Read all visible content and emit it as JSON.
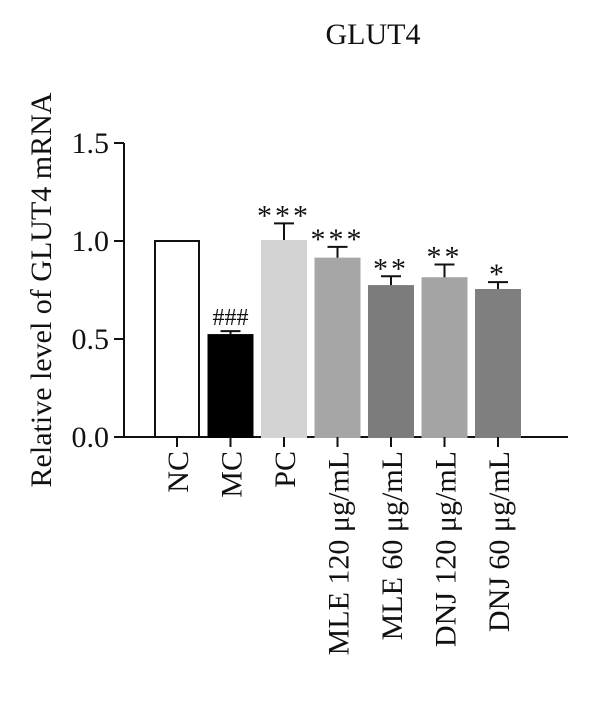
{
  "chart_data": {
    "type": "bar",
    "title": "GLUT4",
    "ylabel": "Relative level of GLUT4 mRNA",
    "xlabel": "",
    "ylim": [
      0,
      1.5
    ],
    "yticks": [
      "0.0",
      "0.5",
      "1.0",
      "1.5"
    ],
    "grid": false,
    "categories": [
      "NC",
      "MC",
      "PC",
      "MLE 120 μg/mL",
      "MLE 60 μg/mL",
      "DNJ 120 μg/mL",
      "DNJ 60 μg/mL"
    ],
    "values": [
      1.0,
      0.52,
      1.0,
      0.91,
      0.77,
      0.81,
      0.75
    ],
    "errors": [
      0.0,
      0.02,
      0.09,
      0.06,
      0.05,
      0.07,
      0.04
    ],
    "annotations": [
      "",
      "###",
      "***",
      "***",
      "**",
      "**",
      "*"
    ],
    "colors": [
      "#ffffff",
      "#000000",
      "#d3d3d3",
      "#a6a6a6",
      "#7c7c7c",
      "#a4a4a4",
      "#7f7f7f"
    ]
  }
}
